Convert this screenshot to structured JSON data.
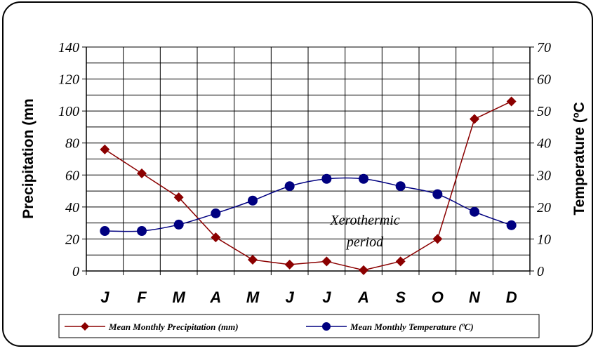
{
  "chart_data": {
    "type": "line",
    "categories": [
      "J",
      "F",
      "M",
      "A",
      "M",
      "J",
      "J",
      "A",
      "S",
      "O",
      "N",
      "D"
    ],
    "y_left": {
      "label": "Precipitation (mn",
      "ylim": [
        0,
        140
      ],
      "ticks": [
        "0",
        "20",
        "40",
        "60",
        "80",
        "100",
        "120",
        "140"
      ]
    },
    "y_right": {
      "label": "Temperature (ºC",
      "ylim": [
        0,
        70
      ],
      "ticks": [
        "0",
        "10",
        "20",
        "30",
        "40",
        "50",
        "60",
        "70"
      ]
    },
    "series": [
      {
        "name": "Mean Monthly Precipitation (mm)",
        "axis": "left",
        "color": "#8B0000",
        "marker": "diamond",
        "values": [
          76,
          61,
          46,
          21,
          7,
          4,
          6,
          0.5,
          6,
          20,
          95,
          106
        ]
      },
      {
        "name": "Mean Monthly Temperature (ºC)",
        "axis": "right",
        "color": "#000080",
        "marker": "circle",
        "values": [
          12.5,
          12.5,
          14.5,
          18,
          22,
          26.5,
          28.8,
          28.8,
          26.5,
          24,
          18.5,
          14.3
        ]
      }
    ],
    "annotation": {
      "line1": "Xerothermic",
      "line2": "period"
    },
    "grid": true,
    "legend_position": "bottom"
  }
}
